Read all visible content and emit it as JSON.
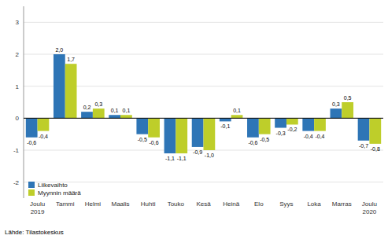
{
  "chart_data": {
    "type": "bar",
    "categories": [
      "Joulu\n2019",
      "Tammi",
      "Helmi",
      "Maalis",
      "Huhti",
      "Touko",
      "Kesä",
      "Heinä",
      "Elo",
      "Syys",
      "Loka",
      "Marras",
      "Joulu\n2020"
    ],
    "series": [
      {
        "name": "Liikevaihto",
        "color": "#2E75B6",
        "values": [
          -0.6,
          2.0,
          0.2,
          0.1,
          -0.5,
          -1.1,
          -0.9,
          -0.1,
          -0.6,
          -0.3,
          -0.4,
          0.3,
          -0.7
        ],
        "value_labels": [
          "-0,6",
          "2,0",
          "0,2",
          "0,1",
          "-0,5",
          "-1,1",
          "-0,9",
          "-0,1",
          "-0,6",
          "-0,3",
          "-0,4",
          "0,3",
          "-0,7"
        ]
      },
      {
        "name": "Myynnin määrä",
        "color": "#BECE2A",
        "values": [
          -0.4,
          1.7,
          0.3,
          0.1,
          -0.6,
          -1.1,
          -1.0,
          0.1,
          -0.5,
          -0.2,
          -0.4,
          0.5,
          -0.8
        ],
        "value_labels": [
          "-0,4",
          "1,7",
          "0,3",
          "0,1",
          "-0,6",
          "-1,1",
          "-1,0",
          "0,1",
          "-0,5",
          "-0,2",
          "-0,4",
          "0,5",
          "-0,8"
        ]
      }
    ],
    "ylim": [
      -2.5,
      3.5
    ],
    "yticks": [
      -2,
      -1,
      0,
      1,
      2,
      3
    ],
    "grid": true,
    "legend": "lower left",
    "data_labels": true,
    "annotations": [
      "Lähde: Tilastokeskus"
    ]
  }
}
